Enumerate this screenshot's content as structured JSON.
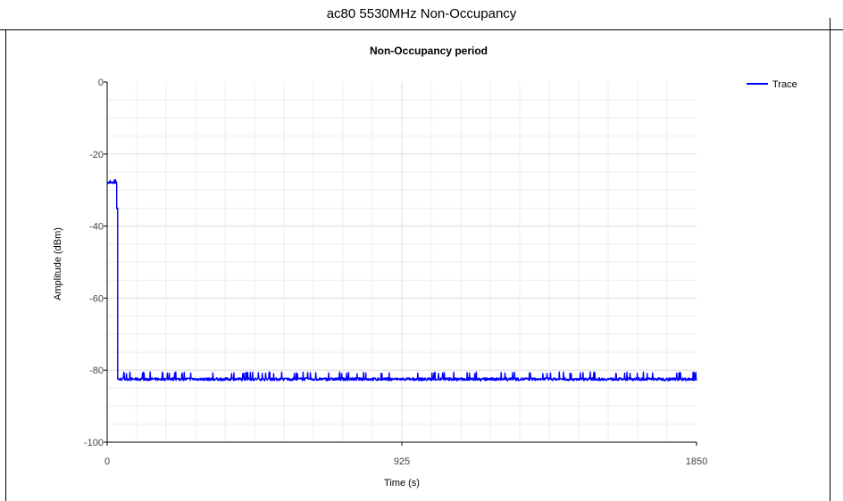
{
  "window": {
    "title": "ac80 5530MHz Non-Occupancy"
  },
  "chart_data": {
    "type": "line",
    "title": "Non-Occupancy period",
    "xlabel": "Time (s)",
    "ylabel": "Amplitude (dBm)",
    "xlim": [
      0,
      1850
    ],
    "ylim": [
      -100,
      0
    ],
    "x_ticks": [
      "0",
      "925",
      "1850"
    ],
    "y_ticks": [
      "0",
      "-20",
      "-40",
      "-60",
      "-80",
      "-100"
    ],
    "grid": true,
    "legend_position": "top-right",
    "series": [
      {
        "name": "Trace",
        "color": "#0000ff",
        "segments": [
          {
            "x_start": 0,
            "x_end": 20,
            "level": -28,
            "noise_low": -42,
            "noise_high": -27
          },
          {
            "x_start": 20,
            "x_end": 30,
            "level": -28,
            "noise_low": -35,
            "noise_high": -27
          },
          {
            "x_start": 30,
            "x_end": 33,
            "level": -35,
            "noise_low": -42,
            "noise_high": -33
          },
          {
            "x_start": 33,
            "x_end": 1850,
            "level": -82.5,
            "noise_low": -83,
            "noise_high": -80.5
          }
        ]
      }
    ]
  }
}
